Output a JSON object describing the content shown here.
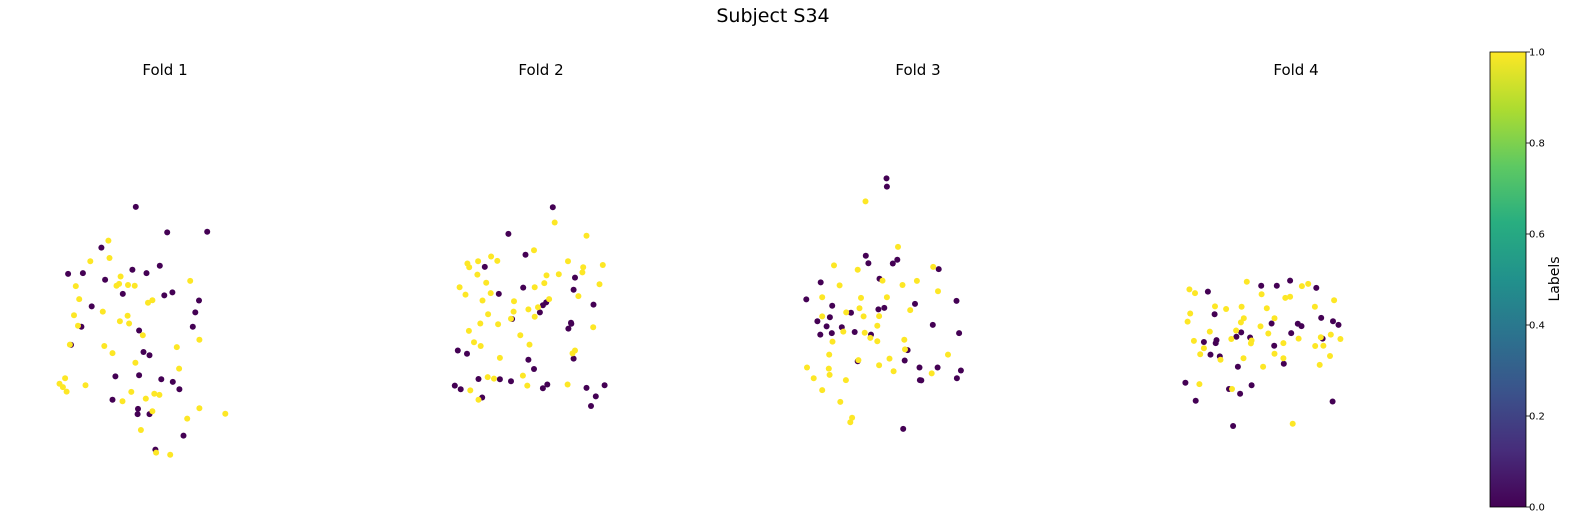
{
  "figure": {
    "suptitle": "Subject S34"
  },
  "chart_data": [
    {
      "type": "scatter",
      "title": "Fold 1",
      "axes_visible": false,
      "color_by": "label",
      "series": [
        {
          "label_value": 0,
          "color": "#440154",
          "x": [
            -2.62,
            -2.54,
            -2.26,
            -2.22,
            -1.98,
            -1.72,
            -1.62,
            -1.42,
            -1.34,
            -1.14,
            -0.88,
            -0.79,
            -0.74,
            -0.73,
            -0.7,
            -0.7,
            -0.58,
            -0.5,
            -0.42,
            -0.42,
            -0.26,
            -0.14,
            -0.1,
            -0.02,
            0.06,
            0.2,
            0.21,
            0.39,
            0.5,
            0.75,
            0.82,
            0.92,
            1.14
          ],
          "y": [
            2.03,
            0.11,
            0.6,
            2.05,
            1.15,
            2.74,
            1.87,
            -1.37,
            -0.74,
            1.49,
            2.14,
            3.84,
            -1.76,
            -1.62,
            -0.71,
            0.5,
            -0.08,
            2.05,
            -1.76,
            -0.17,
            -2.72,
            2.25,
            -0.82,
            1.45,
            3.15,
            1.53,
            -0.89,
            -1.09,
            -2.34,
            0.6,
            0.99,
            1.31,
            3.17
          ]
        },
        {
          "label_value": 1,
          "color": "#fde725",
          "x": [
            -2.85,
            -2.76,
            -2.7,
            -2.66,
            -2.57,
            -2.46,
            -2.41,
            -2.35,
            -2.32,
            -2.15,
            -2.02,
            -1.68,
            -1.64,
            -1.53,
            -1.5,
            -1.42,
            -1.31,
            -1.24,
            -1.22,
            -1.2,
            -1.15,
            -1.01,
            -1.0,
            -0.97,
            -0.91,
            -0.82,
            -0.8,
            -0.65,
            -0.6,
            -0.52,
            -0.46,
            -0.34,
            -0.34,
            -0.29,
            -0.24,
            -0.15,
            0.14,
            0.32,
            0.38,
            0.6,
            0.68,
            0.93,
            0.93,
            1.63
          ],
          "y": [
            -0.94,
            -1.03,
            -0.79,
            -1.15,
            0.12,
            0.91,
            1.7,
            0.63,
            1.35,
            -0.98,
            2.37,
            1.01,
            0.08,
            2.93,
            2.46,
            -0.11,
            1.71,
            1.76,
            0.75,
            1.96,
            -1.41,
            0.9,
            1.73,
            0.69,
            -1.16,
            1.71,
            -0.37,
            -2.19,
            0.37,
            -1.34,
            1.25,
            1.32,
            -1.68,
            -1.21,
            -2.8,
            -1.24,
            -2.86,
            0.05,
            -0.53,
            -1.88,
            1.84,
            -1.6,
            0.25,
            -1.75
          ]
        }
      ]
    },
    {
      "type": "scatter",
      "title": "Fold 2",
      "axes_visible": false,
      "color_by": "label",
      "series": [
        {
          "label_value": 0,
          "color": "#440154",
          "x": [
            -2.33,
            -2.25,
            -2.17,
            -2.0,
            -1.69,
            -1.59,
            -1.52,
            -1.14,
            -1.11,
            -0.88,
            -0.81,
            -0.78,
            -0.48,
            -0.42,
            -0.34,
            -0.19,
            -0.03,
            0.05,
            0.05,
            0.14,
            0.17,
            0.32,
            0.74,
            0.81,
            0.82,
            0.88,
            0.88,
            0.92,
            1.23,
            1.35,
            1.42,
            1.48,
            1.72
          ],
          "y": [
            -0.99,
            -0.04,
            -1.09,
            -0.13,
            -0.81,
            -1.31,
            2.22,
            1.49,
            -0.82,
            3.11,
            -0.87,
            0.81,
            1.66,
            2.55,
            -0.29,
            -0.54,
            0.99,
            1.18,
            -1.06,
            1.26,
            -0.96,
            3.83,
            0.55,
            0.71,
            0.68,
            -0.26,
            1.6,
            1.93,
            -1.05,
            -1.54,
            1.2,
            -1.28,
            -0.98
          ]
        },
        {
          "label_value": 1,
          "color": "#fde725",
          "x": [
            -2.2,
            -2.04,
            -1.99,
            -1.95,
            -1.94,
            -1.91,
            -1.81,
            -1.72,
            -1.7,
            -1.69,
            -1.64,
            -1.63,
            -1.58,
            -1.48,
            -1.44,
            -1.43,
            -1.36,
            -1.35,
            -1.27,
            -1.18,
            -1.16,
            -1.11,
            -0.81,
            -0.74,
            -0.73,
            -0.56,
            -0.49,
            -0.37,
            -0.34,
            -0.31,
            -0.19,
            -0.17,
            -0.17,
            -0.08,
            0.09,
            0.15,
            0.22,
            0.37,
            0.48,
            0.72,
            0.73,
            0.85,
            0.92,
            1.01,
            1.12,
            1.14,
            1.23,
            1.41,
            1.58,
            1.67
          ],
          "y": [
            1.67,
            1.47,
            2.31,
            0.49,
            2.21,
            -1.12,
            0.18,
            2.01,
            2.37,
            -1.37,
            0.69,
            0.08,
            1.31,
            1.79,
            -0.76,
            0.94,
            1.51,
            2.5,
            -0.8,
            2.38,
            0.67,
            -0.24,
            0.82,
            1.01,
            1.29,
            0.37,
            -0.72,
            -0.99,
            1.07,
            0.12,
            2.67,
            1.67,
            0.87,
            1.13,
            1.78,
            1.99,
            1.35,
            3.42,
            2.02,
            -0.96,
            2.37,
            -0.12,
            -0.04,
            1.43,
            2.07,
            2.21,
            3.06,
            0.59,
            1.75,
            2.27
          ]
        }
      ]
    },
    {
      "type": "scatter",
      "title": "Fold 3",
      "axes_visible": false,
      "color_by": "label",
      "series": [
        {
          "label_value": 0,
          "color": "#440154",
          "x": [
            -3.02,
            -2.72,
            -2.64,
            -2.63,
            -2.47,
            -2.38,
            -2.33,
            -2.32,
            -2.06,
            -1.81,
            -1.71,
            -1.63,
            -1.41,
            -1.34,
            -1.27,
            -1.07,
            -1.04,
            -0.91,
            -0.85,
            -0.84,
            -0.68,
            -0.56,
            -0.4,
            -0.36,
            -0.28,
            -0.08,
            0.04,
            0.05,
            0.09,
            0.4,
            0.53,
            0.56,
            1.04,
            1.05,
            1.11,
            1.16
          ],
          "y": [
            1.34,
            0.75,
            0.39,
            1.8,
            0.61,
            0.86,
            0.43,
            1.17,
            0.59,
            0.98,
            0.46,
            -0.33,
            2.52,
            2.32,
            0.39,
            1.07,
            1.9,
            1.11,
            4.61,
            4.39,
            2.31,
            2.41,
            -2.16,
            -0.31,
            -0.03,
            1.22,
            -0.5,
            -0.84,
            -0.85,
            0.65,
            -0.5,
            2.16,
            1.3,
            -0.79,
            0.43,
            -0.58
          ]
        },
        {
          "label_value": 1,
          "color": "#fde725",
          "x": [
            -3.0,
            -2.82,
            -2.59,
            -2.59,
            -2.59,
            -2.41,
            -2.4,
            -2.39,
            -2.31,
            -2.27,
            -2.12,
            -2.1,
            -2.02,
            -1.95,
            -1.94,
            -1.83,
            -1.78,
            -1.63,
            -1.61,
            -1.58,
            -1.54,
            -1.47,
            -1.44,
            -1.42,
            -1.29,
            -1.1,
            -1.1,
            -1.05,
            -1.05,
            -0.96,
            -0.84,
            -0.77,
            -0.66,
            -0.54,
            -0.42,
            -0.37,
            -0.35,
            -0.21,
            -0.03,
            0.37,
            0.41,
            0.54,
            0.81
          ],
          "y": [
            -0.5,
            -0.79,
            0.88,
            -1.11,
            1.4,
            -0.53,
            -0.15,
            -0.7,
            0.2,
            2.26,
            1.72,
            -1.43,
            0.47,
            -0.84,
            0.99,
            -1.98,
            -1.86,
            2.14,
            -0.3,
            1.1,
            1.38,
            0.88,
            0.44,
            3.99,
            0.3,
            0.63,
            0.21,
            -0.44,
            0.89,
            1.85,
            1.4,
            -0.26,
            -0.6,
            2.76,
            1.73,
            0.25,
            -0.01,
            1.05,
            1.84,
            -0.66,
            2.22,
            1.56,
            -0.15
          ]
        }
      ]
    },
    {
      "type": "scatter",
      "title": "Fold 4",
      "axes_visible": false,
      "color_by": "label",
      "series": [
        {
          "label_value": 0,
          "color": "#440154",
          "x": [
            -2.99,
            -2.71,
            -2.49,
            -2.38,
            -2.31,
            -2.2,
            -2.17,
            -2.15,
            -2.06,
            -1.81,
            -1.7,
            -1.61,
            -1.57,
            -1.51,
            -1.48,
            -1.24,
            -1.2,
            -0.94,
            -0.66,
            -0.59,
            -0.52,
            -0.33,
            -0.16,
            -0.13,
            0.05,
            0.15,
            0.55,
            0.68,
            0.72,
            0.99,
            1.0,
            1.15
          ],
          "y": [
            -0.91,
            -1.4,
            0.19,
            1.55,
            -0.15,
            0.94,
            0.16,
            0.24,
            -0.2,
            -1.08,
            -2.08,
            0.33,
            -0.48,
            -1.21,
            0.45,
            0.31,
            -0.98,
            1.71,
            0.69,
            0.09,
            1.71,
            -0.4,
            1.85,
            0.43,
            0.68,
            0.62,
            1.65,
            0.84,
            0.28,
            -1.42,
            0.75,
            0.65
          ]
        },
        {
          "label_value": 1,
          "color": "#fde725",
          "x": [
            -2.93,
            -2.88,
            -2.86,
            -2.76,
            -2.73,
            -2.61,
            -2.59,
            -2.49,
            -2.33,
            -2.19,
            -2.04,
            -1.89,
            -1.75,
            -1.73,
            -1.62,
            -1.49,
            -1.47,
            -1.42,
            -1.41,
            -1.33,
            -1.22,
            -1.2,
            -0.96,
            -0.93,
            -0.89,
            -0.79,
            -0.75,
            -0.58,
            -0.58,
            -0.34,
            -0.34,
            -0.29,
            -0.16,
            -0.09,
            0.07,
            0.16,
            0.33,
            0.51,
            0.52,
            0.64,
            0.67,
            0.74,
            0.92,
            0.94,
            1.03,
            1.2
          ],
          "y": [
            0.74,
            1.61,
            0.96,
            0.22,
            1.51,
            -0.95,
            -0.14,
            0.02,
            0.47,
            1.15,
            -0.29,
            1.08,
            0.27,
            -1.08,
            0.5,
            0.72,
            1.14,
            -0.25,
            0.83,
            1.82,
            0.15,
            0.23,
            0.61,
            1.48,
            -0.48,
            1.1,
            0.42,
            0.83,
            -0.13,
            0.16,
            -0.25,
            1.38,
            1.41,
            -2.02,
            0.28,
            1.7,
            1.76,
            1.14,
            0.08,
            -0.43,
            0.32,
            0.09,
            -0.19,
            0.39,
            1.32,
            0.27
          ]
        }
      ]
    }
  ],
  "colorbar": {
    "label": "Labels",
    "colormap": "viridis",
    "vmin": 0.0,
    "vmax": 1.0,
    "ticks": [
      "0.0",
      "0.2",
      "0.4",
      "0.6",
      "0.8",
      "1.0"
    ],
    "tick_values": [
      0.0,
      0.2,
      0.4,
      0.6,
      0.8,
      1.0
    ],
    "stops": [
      "#440154",
      "#472d7b",
      "#3b528b",
      "#2c728e",
      "#21918c",
      "#28ae80",
      "#5ec962",
      "#addc30",
      "#fde725"
    ]
  }
}
